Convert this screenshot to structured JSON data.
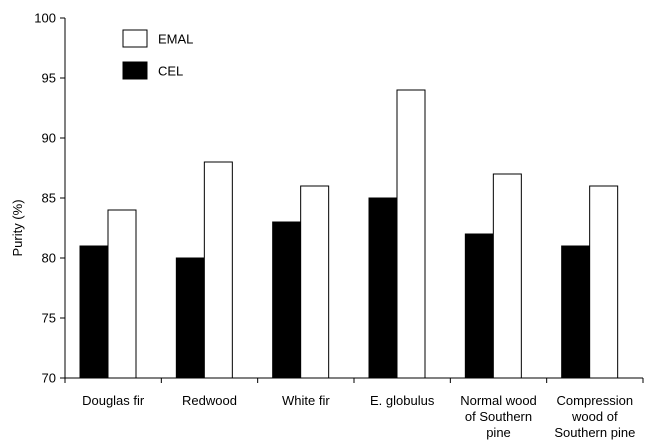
{
  "chart_data": {
    "type": "bar",
    "title": "",
    "xlabel": "",
    "ylabel": "Purity (%)",
    "ylim": [
      70,
      100
    ],
    "yticks": [
      70,
      75,
      80,
      85,
      90,
      95,
      100
    ],
    "grid": false,
    "legend_position": "top-left",
    "categories": [
      [
        "Douglas fir"
      ],
      [
        "Redwood"
      ],
      [
        "White fir"
      ],
      [
        "E. globulus"
      ],
      [
        "Normal wood",
        "of Southern",
        "pine"
      ],
      [
        "Compression",
        "wood of",
        "Southern pine"
      ]
    ],
    "series": [
      {
        "name": "CEL",
        "color": "#000000",
        "values": [
          81,
          80,
          83,
          85,
          82,
          81
        ]
      },
      {
        "name": "EMAL",
        "color": "#ffffff",
        "values": [
          84,
          88,
          86,
          94,
          87,
          86
        ]
      }
    ],
    "legend_order": [
      "EMAL",
      "CEL"
    ]
  }
}
